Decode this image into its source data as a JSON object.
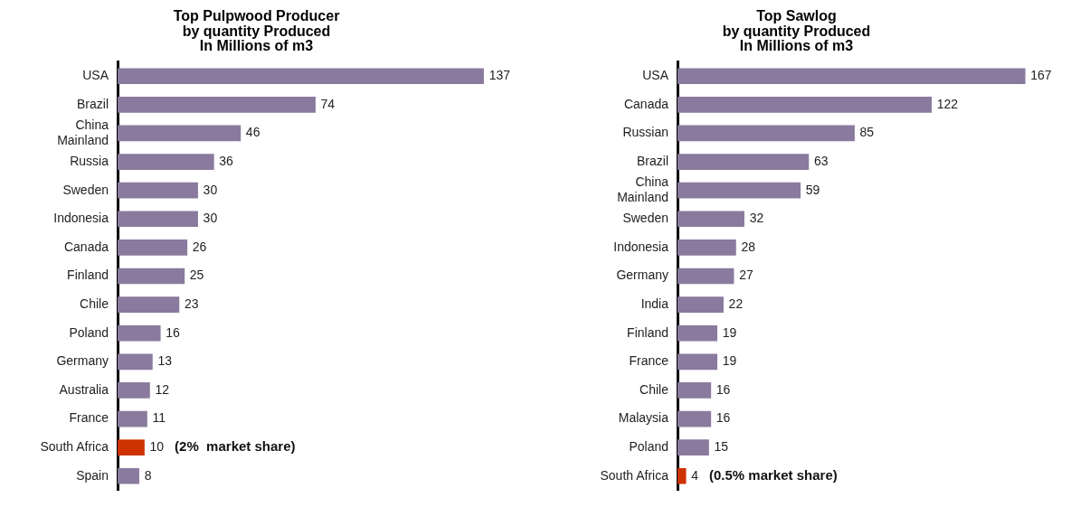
{
  "chart_data": [
    {
      "type": "bar",
      "orientation": "horizontal",
      "title": "Top Pulpwood Producer\nby quantity Produced\nIn Millions of m3",
      "categories": [
        "USA",
        "Brazil",
        "China\nMainland",
        "Russia",
        "Sweden",
        "Indonesia",
        "Canada",
        "Finland",
        "Chile",
        "Poland",
        "Germany",
        "Australia",
        "France",
        "South Africa",
        "Spain"
      ],
      "values": [
        137,
        74,
        46,
        36,
        30,
        30,
        26,
        25,
        23,
        16,
        13,
        12,
        11,
        10,
        8
      ],
      "colors": [
        "#8a7a9e",
        "#8a7a9e",
        "#8a7a9e",
        "#8a7a9e",
        "#8a7a9e",
        "#8a7a9e",
        "#8a7a9e",
        "#8a7a9e",
        "#8a7a9e",
        "#8a7a9e",
        "#8a7a9e",
        "#8a7a9e",
        "#8a7a9e",
        "#cc3300",
        "#8a7a9e"
      ],
      "data_labels": true,
      "grid": false,
      "legend": false,
      "tick_labels": "y",
      "annotations": [
        {
          "text": "(2%  market share)",
          "x": 10,
          "y": "South Africa"
        }
      ]
    },
    {
      "type": "bar",
      "orientation": "horizontal",
      "title": "Top Sawlog\nby quantity Produced\nIn Millions of m3",
      "categories": [
        "USA",
        "Canada",
        "Russian",
        "Brazil",
        "China\nMainland",
        "Sweden",
        "Indonesia",
        "Germany",
        "India",
        "Finland",
        "France",
        "Chile",
        "Malaysia",
        "Poland",
        "South Africa"
      ],
      "values": [
        167,
        122,
        85,
        63,
        59,
        32,
        28,
        27,
        22,
        19,
        19,
        16,
        16,
        15,
        4
      ],
      "colors": [
        "#8a7a9e",
        "#8a7a9e",
        "#8a7a9e",
        "#8a7a9e",
        "#8a7a9e",
        "#8a7a9e",
        "#8a7a9e",
        "#8a7a9e",
        "#8a7a9e",
        "#8a7a9e",
        "#8a7a9e",
        "#8a7a9e",
        "#8a7a9e",
        "#8a7a9e",
        "#cc3300"
      ],
      "data_labels": true,
      "grid": false,
      "legend": false,
      "tick_labels": "y",
      "annotations": [
        {
          "text": "(0.5% market share)",
          "x": 4,
          "y": "South Africa"
        }
      ]
    }
  ]
}
